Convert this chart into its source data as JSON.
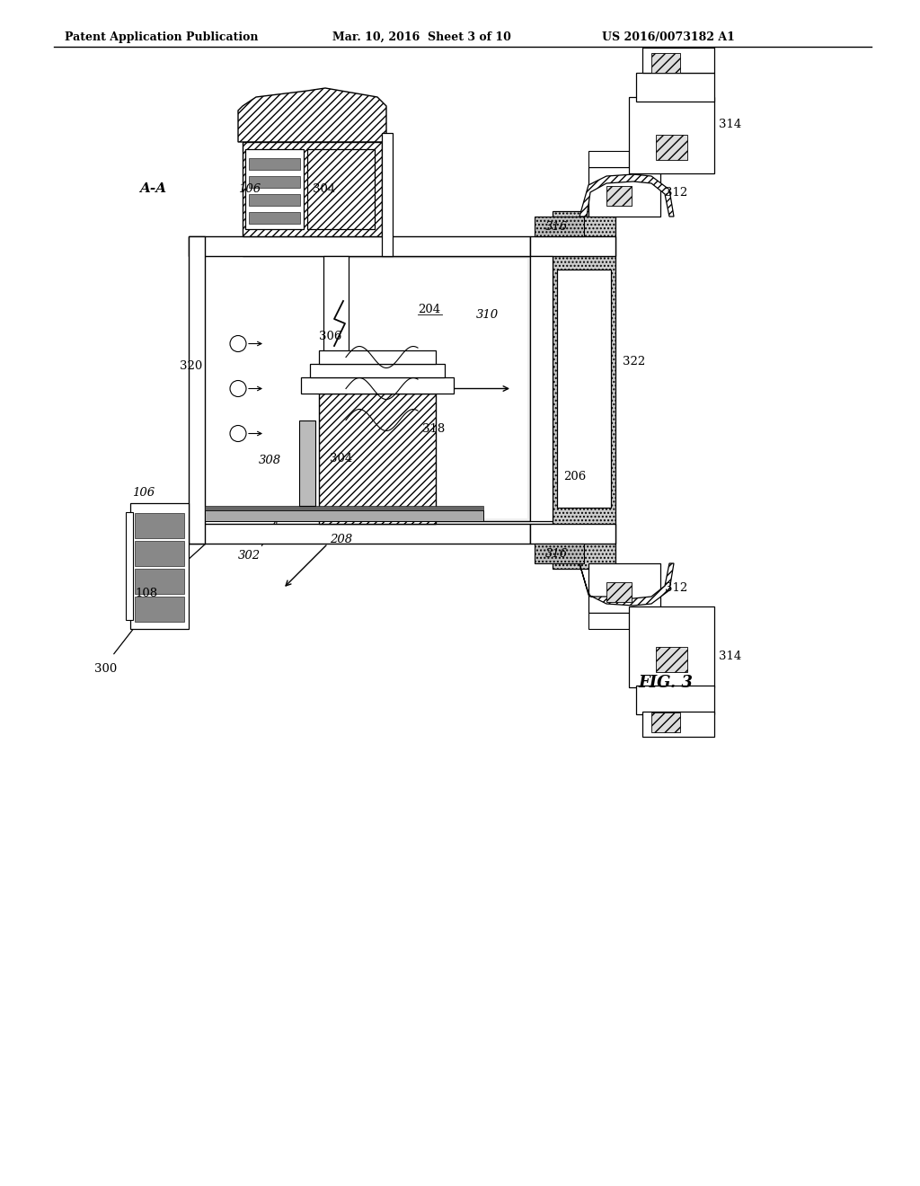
{
  "header_left": "Patent Application Publication",
  "header_mid": "Mar. 10, 2016  Sheet 3 of 10",
  "header_right": "US 2016/0073182 A1",
  "fig_label": "FIG. 3",
  "section_label": "A-A",
  "bg_color": "#ffffff",
  "lc": "#000000",
  "gray1": "#aaaaaa",
  "gray2": "#cccccc",
  "gray3": "#888888"
}
